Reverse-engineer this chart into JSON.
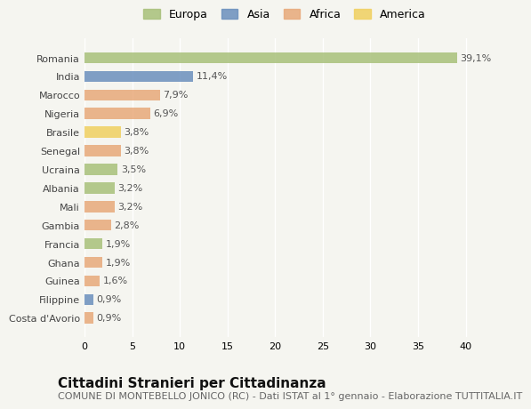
{
  "countries": [
    "Romania",
    "India",
    "Marocco",
    "Nigeria",
    "Brasile",
    "Senegal",
    "Ucraina",
    "Albania",
    "Mali",
    "Gambia",
    "Francia",
    "Ghana",
    "Guinea",
    "Filippine",
    "Costa d'Avorio"
  ],
  "values": [
    39.1,
    11.4,
    7.9,
    6.9,
    3.8,
    3.8,
    3.5,
    3.2,
    3.2,
    2.8,
    1.9,
    1.9,
    1.6,
    0.9,
    0.9
  ],
  "labels": [
    "39,1%",
    "11,4%",
    "7,9%",
    "6,9%",
    "3,8%",
    "3,8%",
    "3,5%",
    "3,2%",
    "3,2%",
    "2,8%",
    "1,9%",
    "1,9%",
    "1,6%",
    "0,9%",
    "0,9%"
  ],
  "continents": [
    "Europa",
    "Asia",
    "Africa",
    "Africa",
    "America",
    "Africa",
    "Europa",
    "Europa",
    "Africa",
    "Africa",
    "Europa",
    "Africa",
    "Africa",
    "Asia",
    "Africa"
  ],
  "colors": {
    "Europa": "#a8c07a",
    "Asia": "#6a8fbd",
    "Africa": "#e8a97a",
    "America": "#f0d060"
  },
  "background_color": "#f5f5f0",
  "xlim": [
    0,
    42
  ],
  "xticks": [
    0,
    5,
    10,
    15,
    20,
    25,
    30,
    35,
    40
  ],
  "title": "Cittadini Stranieri per Cittadinanza",
  "subtitle": "COMUNE DI MONTEBELLO JONICO (RC) - Dati ISTAT al 1° gennaio - Elaborazione TUTTITALIA.IT",
  "title_fontsize": 11,
  "subtitle_fontsize": 8,
  "label_fontsize": 8,
  "tick_fontsize": 8,
  "legend_order": [
    "Europa",
    "Asia",
    "Africa",
    "America"
  ]
}
